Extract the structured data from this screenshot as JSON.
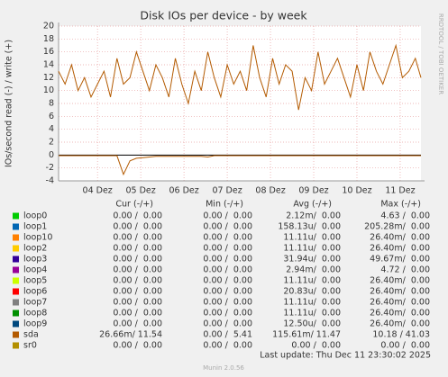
{
  "chart_data": {
    "type": "line",
    "title": "Disk IOs per device - by week",
    "y_label": "IOs/second read (-) / write (+)",
    "side_text": "RRDTOOL / TOBI OETIKER",
    "ylim": [
      -4,
      20
    ],
    "yticks": [
      -4,
      -2,
      0,
      2,
      4,
      6,
      8,
      10,
      12,
      14,
      16,
      18,
      20
    ],
    "xlim": [
      3.6,
      11.98
    ],
    "xticks": [
      {
        "value": 4.5,
        "label": "04 Dez"
      },
      {
        "value": 5.5,
        "label": "05 Dez"
      },
      {
        "value": 6.5,
        "label": "06 Dez"
      },
      {
        "value": 7.5,
        "label": "07 Dez"
      },
      {
        "value": 8.5,
        "label": "08 Dez"
      },
      {
        "value": 9.5,
        "label": "09 Dez"
      },
      {
        "value": 10.5,
        "label": "10 Dez"
      },
      {
        "value": 11.5,
        "label": "11 Dez"
      }
    ],
    "grid": true,
    "sda": {
      "color": "#b35a00",
      "x": [
        3.6,
        3.75,
        3.9,
        4.05,
        4.2,
        4.35,
        4.5,
        4.65,
        4.8,
        4.95,
        5.1,
        5.25,
        5.4,
        5.55,
        5.7,
        5.85,
        6.0,
        6.15,
        6.3,
        6.45,
        6.6,
        6.75,
        6.9,
        7.05,
        7.2,
        7.35,
        7.5,
        7.65,
        7.8,
        7.95,
        8.1,
        8.25,
        8.4,
        8.55,
        8.7,
        8.85,
        9.0,
        9.15,
        9.3,
        9.45,
        9.6,
        9.75,
        9.9,
        10.05,
        10.2,
        10.35,
        10.5,
        10.65,
        10.8,
        10.95,
        11.1,
        11.25,
        11.4,
        11.55,
        11.7,
        11.85,
        11.98
      ],
      "write": [
        13,
        11,
        14,
        10,
        12,
        9,
        11,
        13,
        9,
        15,
        11,
        12,
        16,
        13,
        10,
        14,
        12,
        9,
        15,
        11,
        8,
        13,
        10,
        16,
        12,
        9,
        14,
        11,
        13,
        10,
        17,
        12,
        9,
        15,
        11,
        14,
        13,
        7,
        12,
        10,
        16,
        11,
        13,
        15,
        12,
        9,
        14,
        10,
        16,
        13,
        11,
        14,
        17,
        12,
        13,
        15,
        12
      ],
      "read": [
        -0.1,
        -0.1,
        -0.1,
        -0.1,
        -0.1,
        -0.1,
        -0.1,
        -0.1,
        -0.1,
        -0.1,
        -3,
        -0.9,
        -0.5,
        -0.4,
        -0.3,
        -0.2,
        -0.2,
        -0.2,
        -0.2,
        -0.2,
        -0.2,
        -0.2,
        -0.2,
        -0.3,
        -0.1,
        -0.1,
        -0.1,
        -0.1,
        -0.1,
        -0.1,
        -0.1,
        -0.1,
        -0.1,
        -0.1,
        -0.1,
        -0.1,
        -0.1,
        -0.1,
        -0.1,
        -0.1,
        -0.1,
        -0.1,
        -0.1,
        -0.1,
        -0.1,
        -0.1,
        -0.1,
        -0.1,
        -0.1,
        -0.1,
        -0.1,
        -0.1,
        -0.1,
        -0.1,
        -0.1,
        -0.1,
        -0.1
      ]
    },
    "legend": {
      "headers": [
        "Cur (-/+)",
        "Min (-/+)",
        "Avg (-/+)",
        "Max (-/+)"
      ],
      "rows": [
        {
          "name": "loop0",
          "color": "#00cc00",
          "cur": "0.00 /  0.00",
          "min": "0.00 /  0.00",
          "avg": "2.12m/  0.00",
          "max": "4.63 /  0.00"
        },
        {
          "name": "loop1",
          "color": "#0066b3",
          "cur": "0.00 /  0.00",
          "min": "0.00 /  0.00",
          "avg": "158.13u/  0.00",
          "max": "205.28m/  0.00"
        },
        {
          "name": "loop10",
          "color": "#ff8000",
          "cur": "0.00 /  0.00",
          "min": "0.00 /  0.00",
          "avg": "11.11u/  0.00",
          "max": "26.40m/  0.00"
        },
        {
          "name": "loop2",
          "color": "#ffcc00",
          "cur": "0.00 /  0.00",
          "min": "0.00 /  0.00",
          "avg": "11.11u/  0.00",
          "max": "26.40m/  0.00"
        },
        {
          "name": "loop3",
          "color": "#330099",
          "cur": "0.00 /  0.00",
          "min": "0.00 /  0.00",
          "avg": "31.94u/  0.00",
          "max": "49.67m/  0.00"
        },
        {
          "name": "loop4",
          "color": "#990099",
          "cur": "0.00 /  0.00",
          "min": "0.00 /  0.00",
          "avg": "2.94m/  0.00",
          "max": "4.72 /  0.00"
        },
        {
          "name": "loop5",
          "color": "#ccff00",
          "cur": "0.00 /  0.00",
          "min": "0.00 /  0.00",
          "avg": "11.11u/  0.00",
          "max": "26.40m/  0.00"
        },
        {
          "name": "loop6",
          "color": "#ff0000",
          "cur": "0.00 /  0.00",
          "min": "0.00 /  0.00",
          "avg": "20.83u/  0.00",
          "max": "26.40m/  0.00"
        },
        {
          "name": "loop7",
          "color": "#808080",
          "cur": "0.00 /  0.00",
          "min": "0.00 /  0.00",
          "avg": "11.11u/  0.00",
          "max": "26.40m/  0.00"
        },
        {
          "name": "loop8",
          "color": "#008f00",
          "cur": "0.00 /  0.00",
          "min": "0.00 /  0.00",
          "avg": "11.11u/  0.00",
          "max": "26.40m/  0.00"
        },
        {
          "name": "loop9",
          "color": "#00487d",
          "cur": "0.00 /  0.00",
          "min": "0.00 /  0.00",
          "avg": "12.50u/  0.00",
          "max": "26.40m/  0.00"
        },
        {
          "name": "sda",
          "color": "#b35a00",
          "cur": "26.66m/ 11.54",
          "min": "0.00 /  5.41",
          "avg": "115.61m/ 11.47",
          "max": "10.18 / 41.03"
        },
        {
          "name": "sr0",
          "color": "#b38f00",
          "cur": "0.00 /  0.00",
          "min": "0.00 /  0.00",
          "avg": "0.00 /  0.00",
          "max": "0.00 /  0.00"
        }
      ]
    },
    "last_update": "Last update: Thu Dec 11 23:30:02 2025",
    "footer": "Munin 2.0.56"
  }
}
